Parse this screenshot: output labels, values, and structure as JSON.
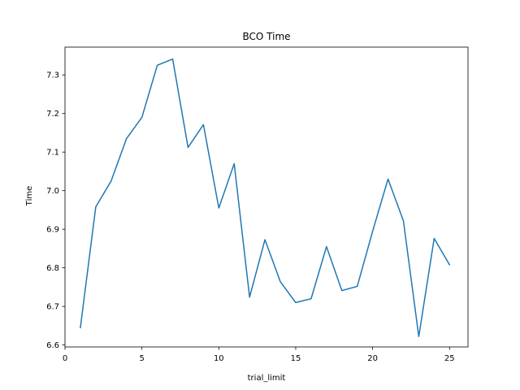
{
  "chart_data": {
    "type": "line",
    "title": "BCO Time",
    "xlabel": "trial_limit",
    "ylabel": "Time",
    "xlim": [
      0,
      26.2
    ],
    "ylim": [
      6.595,
      7.372
    ],
    "x_ticks": [
      0,
      5,
      10,
      15,
      20,
      25
    ],
    "y_ticks": [
      6.6,
      6.7,
      6.8,
      6.9,
      7.0,
      7.1,
      7.2,
      7.3
    ],
    "y_tick_labels": [
      "6.6",
      "6.7",
      "6.8",
      "6.9",
      "7.0",
      "7.1",
      "7.2",
      "7.3"
    ],
    "grid": false,
    "series": [
      {
        "color": "#1f77b4",
        "x": [
          1,
          2,
          3,
          4,
          5,
          6,
          7,
          8,
          9,
          10,
          11,
          12,
          13,
          14,
          15,
          16,
          17,
          18,
          19,
          20,
          21,
          22,
          23,
          24,
          25
        ],
        "values": [
          6.645,
          6.958,
          7.025,
          7.135,
          7.19,
          7.325,
          7.341,
          7.112,
          7.171,
          6.955,
          7.07,
          6.724,
          6.873,
          6.764,
          6.71,
          6.72,
          6.855,
          6.741,
          6.752,
          6.895,
          7.03,
          6.922,
          6.622,
          6.876,
          6.808
        ]
      }
    ]
  }
}
